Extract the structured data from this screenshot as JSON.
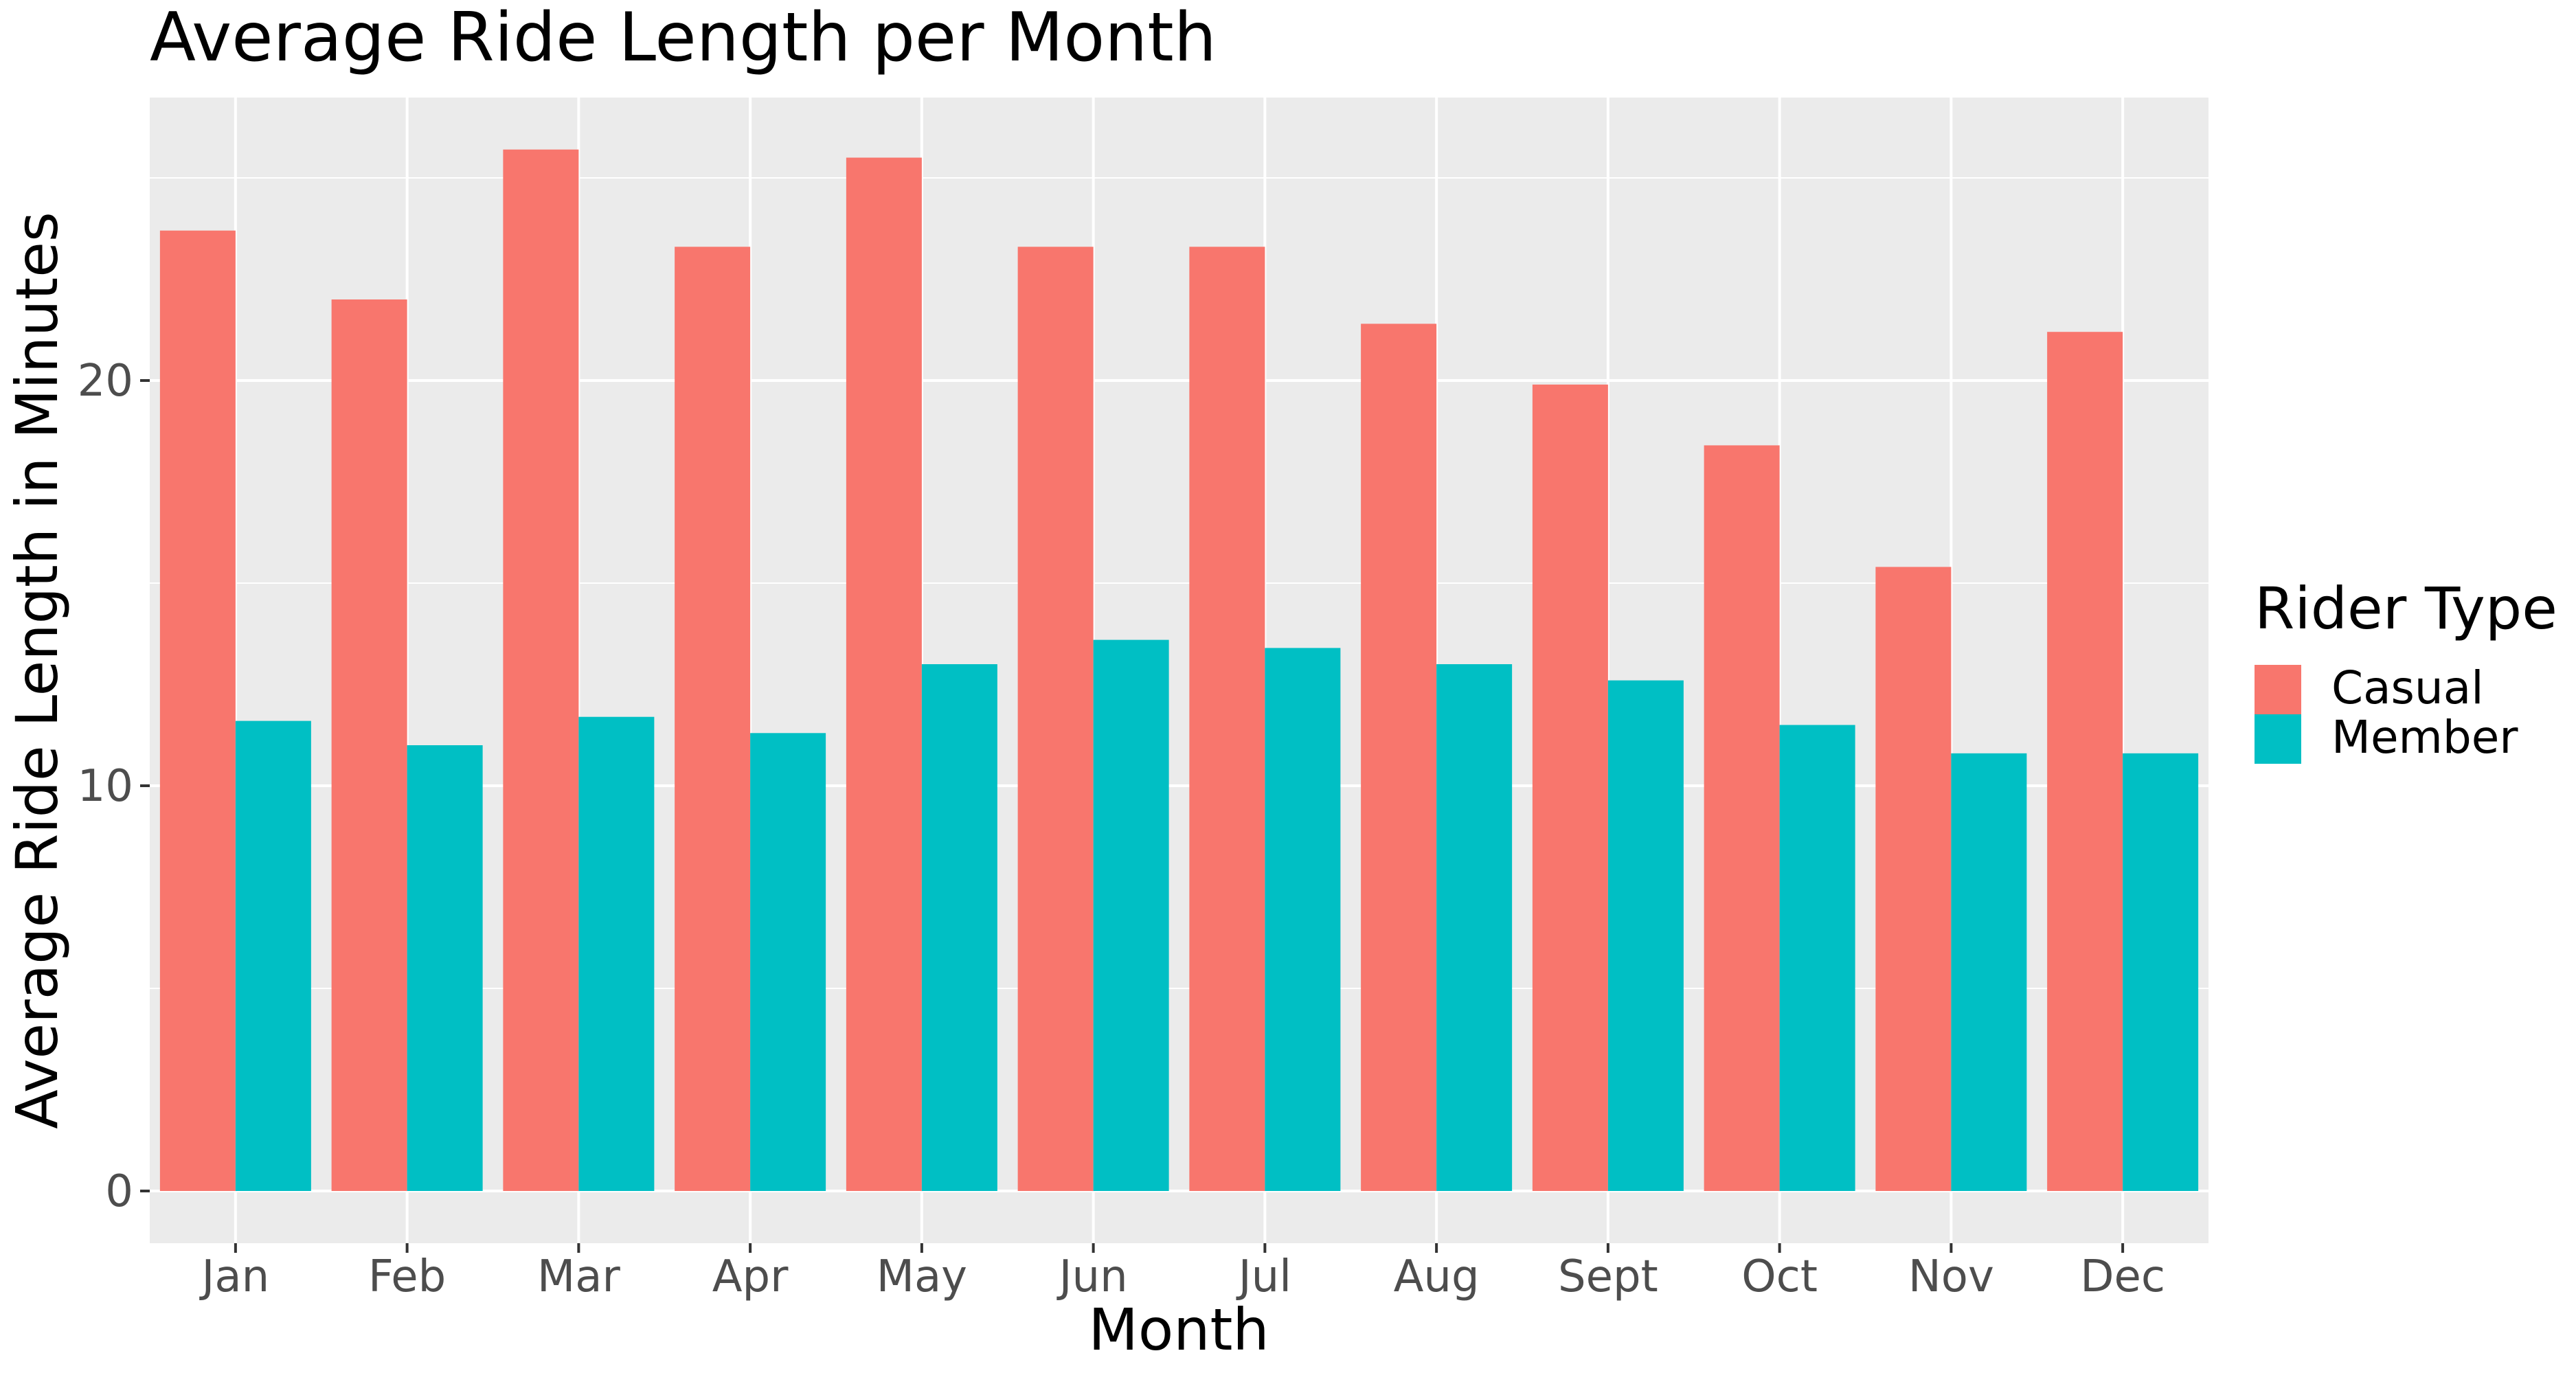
{
  "chart_data": {
    "type": "bar",
    "title": "Average Ride Length per Month",
    "xlabel": "Month",
    "ylabel": "Average Ride Length in Minutes",
    "categories": [
      "Jan",
      "Feb",
      "Mar",
      "Apr",
      "May",
      "Jun",
      "Jul",
      "Aug",
      "Sept",
      "Oct",
      "Nov",
      "Dec"
    ],
    "series": [
      {
        "name": "Casual",
        "color": "#F8766D",
        "values": [
          23.7,
          22.0,
          25.7,
          23.3,
          25.5,
          23.3,
          23.3,
          21.4,
          19.9,
          18.4,
          15.4,
          21.2
        ]
      },
      {
        "name": "Member",
        "color": "#00BFC4",
        "values": [
          11.6,
          11.0,
          11.7,
          11.3,
          13.0,
          13.6,
          13.4,
          13.0,
          12.6,
          11.5,
          10.8,
          10.8
        ]
      }
    ],
    "ylim": [
      0,
      27.6
    ],
    "y_ticks": [
      "0",
      "10",
      "20"
    ],
    "y_tick_values": [
      0,
      10,
      20
    ],
    "grid": true,
    "legend": {
      "title": "Rider Type",
      "position": "right"
    }
  }
}
